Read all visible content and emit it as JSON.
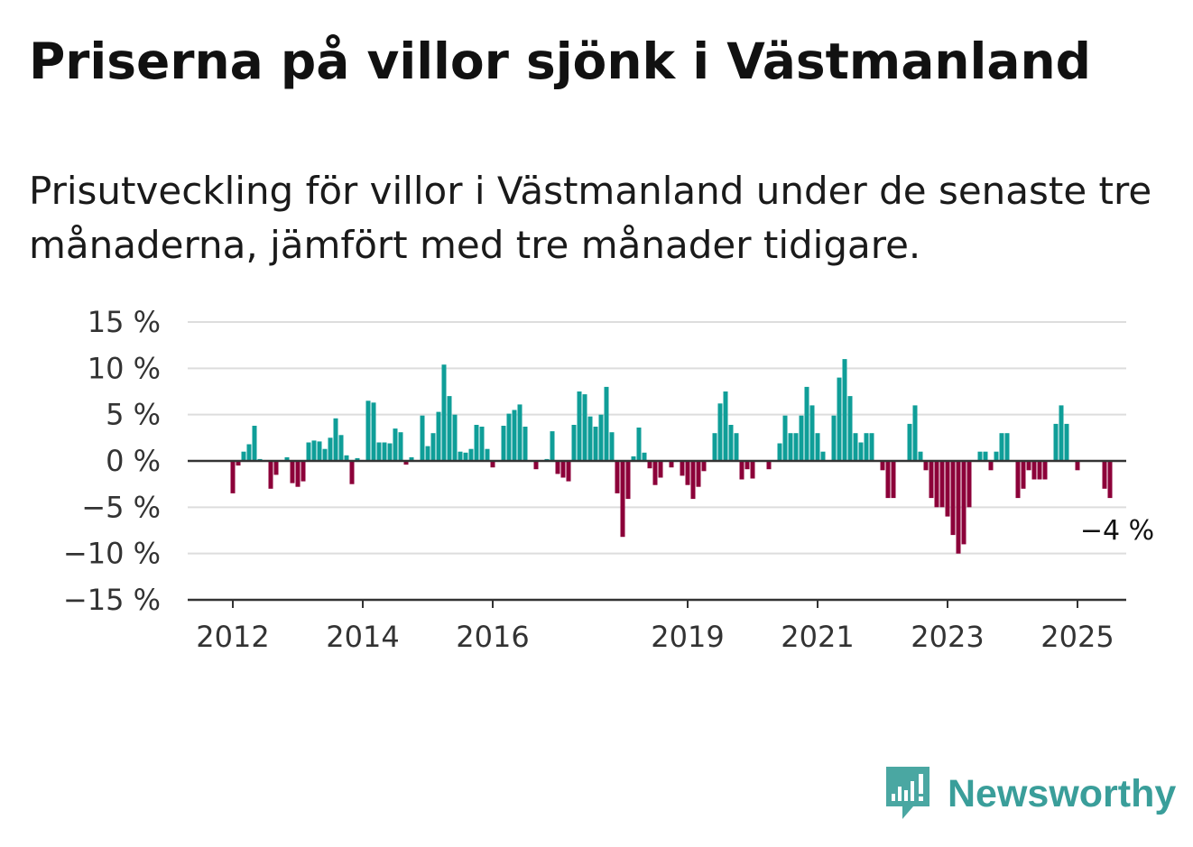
{
  "title": "Priserna på villor sjönk i Västmanland",
  "subtitle": "Prisutveckling för villor i Västmanland under de senaste tre månaderna, jämfört med tre månader tidigare.",
  "brand": "Newsworthy",
  "colors": {
    "positive": "#0f9e98",
    "negative": "#8c0039",
    "grid": "#dddddd",
    "axis": "#333333",
    "brand": "#3a9e9a"
  },
  "chart_data": {
    "type": "bar",
    "title": "",
    "xlabel": "",
    "ylabel": "",
    "ylim": [
      -15,
      15
    ],
    "ytick_values": [
      15,
      10,
      5,
      0,
      -5,
      -10,
      -15
    ],
    "ytick_labels": [
      "15 %",
      "10 %",
      "5 %",
      "0 %",
      "−5 %",
      "−10 %",
      "−15 %"
    ],
    "x_start": "2012-01",
    "xtick_labels": [
      {
        "month": "2012-01",
        "label": "2012"
      },
      {
        "month": "2014-01",
        "label": "2014"
      },
      {
        "month": "2016-01",
        "label": "2016"
      },
      {
        "month": "2019-01",
        "label": "2019"
      },
      {
        "month": "2021-01",
        "label": "2021"
      },
      {
        "month": "2023-01",
        "label": "2023"
      },
      {
        "month": "2025-01",
        "label": "2025"
      }
    ],
    "annotation": {
      "month": "2025-01",
      "value": -4,
      "label": "−4 %"
    },
    "values": [
      -3.5,
      -0.5,
      1.0,
      1.8,
      3.8,
      0.2,
      0,
      -3.0,
      -1.5,
      0,
      0.4,
      -2.4,
      -2.8,
      -2.2,
      2.0,
      2.2,
      2.1,
      1.3,
      2.5,
      4.6,
      2.8,
      0.6,
      -2.5,
      0.3,
      0,
      6.5,
      6.3,
      2.0,
      2.0,
      1.9,
      3.5,
      3.1,
      -0.4,
      0.4,
      0,
      4.9,
      1.6,
      3.0,
      5.3,
      10.4,
      7.0,
      5.0,
      1.0,
      0.9,
      1.3,
      3.9,
      3.7,
      1.3,
      -0.7,
      0,
      3.8,
      5.1,
      5.5,
      6.1,
      3.7,
      0,
      -0.9,
      0,
      0.2,
      3.2,
      -1.4,
      -1.8,
      -2.2,
      3.9,
      7.5,
      7.2,
      4.8,
      3.7,
      5.0,
      8.0,
      3.1,
      -3.5,
      -8.2,
      -4.1,
      0.5,
      3.6,
      0.9,
      -0.8,
      -2.6,
      -1.8,
      0,
      -0.7,
      0,
      -1.6,
      -2.6,
      -4.1,
      -2.8,
      -1.1,
      0,
      3.0,
      6.2,
      7.5,
      3.9,
      3.0,
      -2.0,
      -0.9,
      -1.9,
      0,
      0,
      -0.9,
      0,
      1.9,
      4.9,
      3.0,
      3.0,
      4.9,
      8.0,
      6.0,
      3.0,
      1.0,
      0,
      4.9,
      9.0,
      11.0,
      7.0,
      3.0,
      2.0,
      3.0,
      3.0,
      0,
      -1.0,
      -4.0,
      -4.0,
      0,
      0,
      4.0,
      6.0,
      1.0,
      -1.0,
      -4.0,
      -5.0,
      -5.0,
      -6.0,
      -8.0,
      -10.0,
      -9.0,
      -5.0,
      0,
      1.0,
      1.0,
      -1.0,
      1.0,
      3.0,
      3.0,
      0,
      -4.0,
      -3.0,
      -1.0,
      -2.0,
      -2.0,
      -2.0,
      0,
      4.0,
      6.0,
      4.0,
      0,
      -1.0,
      0,
      0,
      0,
      0,
      -3.0,
      -4.0
    ]
  }
}
